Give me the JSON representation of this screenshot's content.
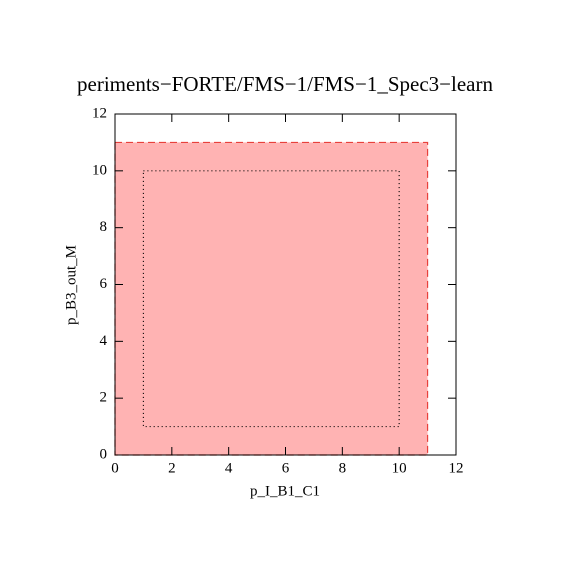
{
  "chart_data": {
    "type": "region",
    "title": "periments−FORTE/FMS−1/FMS−1_Spec3−learn",
    "x_label": "p_I_B1_C1",
    "y_label": "p_B3_out_M",
    "xlim": [
      0,
      12
    ],
    "ylim": [
      0,
      12
    ],
    "xticks": [
      0,
      2,
      4,
      6,
      8,
      10,
      12
    ],
    "yticks": [
      0,
      2,
      4,
      6,
      8,
      10,
      12
    ],
    "regions": [
      {
        "x": [
          0,
          11
        ],
        "y": [
          0,
          11
        ],
        "color": "#ffb3b3",
        "edge": "#e8413c",
        "style": "dashed"
      },
      {
        "x": [
          1,
          10
        ],
        "y": [
          1,
          10
        ],
        "color": "none",
        "edge": "#000000",
        "style": "dotted"
      }
    ]
  }
}
